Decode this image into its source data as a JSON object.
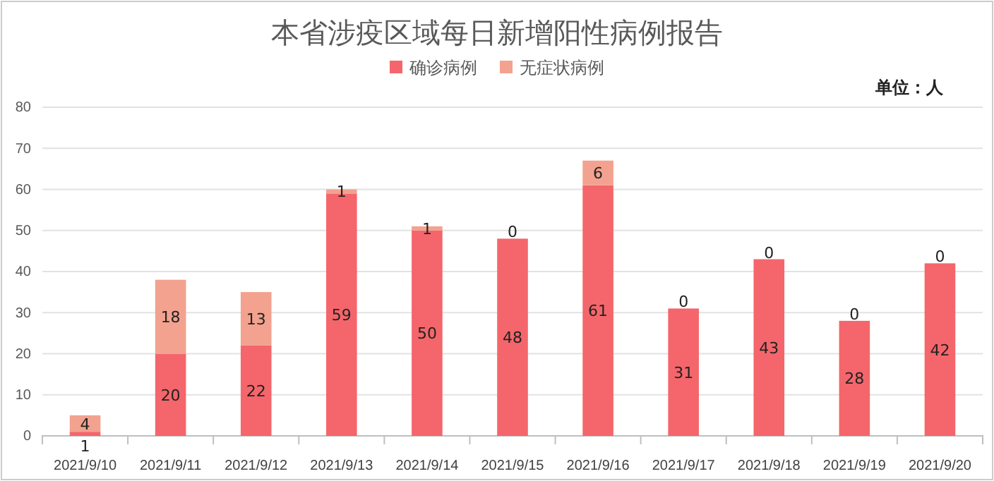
{
  "chart_data": {
    "type": "bar",
    "title": "本省涉疫区域每日新增阳性病例报告",
    "annotations": [
      "单位：人"
    ],
    "categories": [
      "2021/9/10",
      "2021/9/11",
      "2021/9/12",
      "2021/9/13",
      "2021/9/14",
      "2021/9/15",
      "2021/9/16",
      "2021/9/17",
      "2021/9/18",
      "2021/9/19",
      "2021/9/20"
    ],
    "series": [
      {
        "name": "确诊病例",
        "color": "#f4666b",
        "values": [
          1,
          20,
          22,
          59,
          50,
          48,
          61,
          31,
          43,
          28,
          42
        ]
      },
      {
        "name": "无症状病例",
        "color": "#f2a28f",
        "values": [
          4,
          18,
          13,
          1,
          1,
          0,
          6,
          0,
          0,
          0,
          0
        ]
      }
    ],
    "stacked": true,
    "data_labels": true,
    "ylim": [
      0,
      80
    ],
    "yticks": [
      0,
      10,
      20,
      30,
      40,
      50,
      60,
      70,
      80
    ],
    "grid": "y",
    "legend": "top"
  }
}
